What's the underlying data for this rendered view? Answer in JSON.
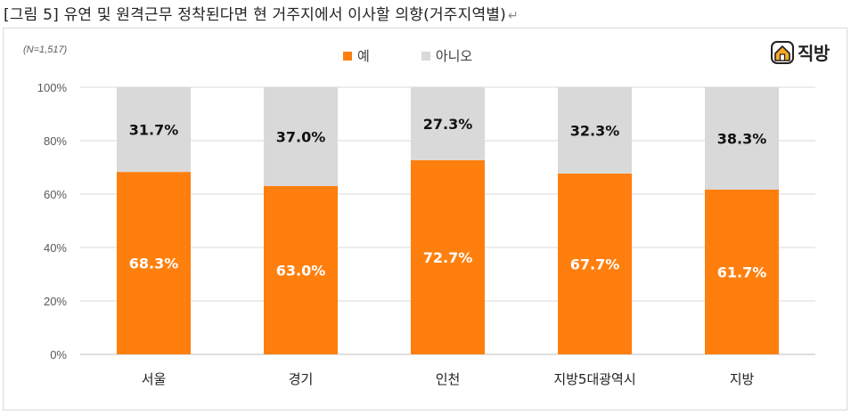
{
  "caption": "[그림 5] 유연 및 원격근무 정착된다면 현 거주지에서 이사할 의향(거주지역별)",
  "caption_mark": "↵",
  "note": "(N=1,517)",
  "brand": "직방",
  "colors": {
    "yes": "#FF7F0E",
    "no": "#D9D9D9",
    "grid": "#D9D9D9"
  },
  "chart_data": {
    "type": "bar",
    "stacked": true,
    "categories": [
      "서울",
      "경기",
      "인천",
      "지방5대광역시",
      "지방"
    ],
    "series": [
      {
        "name": "예",
        "values": [
          68.3,
          63.0,
          72.7,
          67.7,
          61.7
        ],
        "labels": [
          "68.3%",
          "63.0%",
          "72.7%",
          "67.7%",
          "61.7%"
        ]
      },
      {
        "name": "아니오",
        "values": [
          31.7,
          37.0,
          27.3,
          32.3,
          38.3
        ],
        "labels": [
          "31.7%",
          "37.0%",
          "27.3%",
          "32.3%",
          "38.3%"
        ]
      }
    ],
    "yticks": [
      "0%",
      "20%",
      "40%",
      "60%",
      "80%",
      "100%"
    ],
    "ylim": [
      0,
      100
    ],
    "legend": "top-center",
    "grid": true
  }
}
